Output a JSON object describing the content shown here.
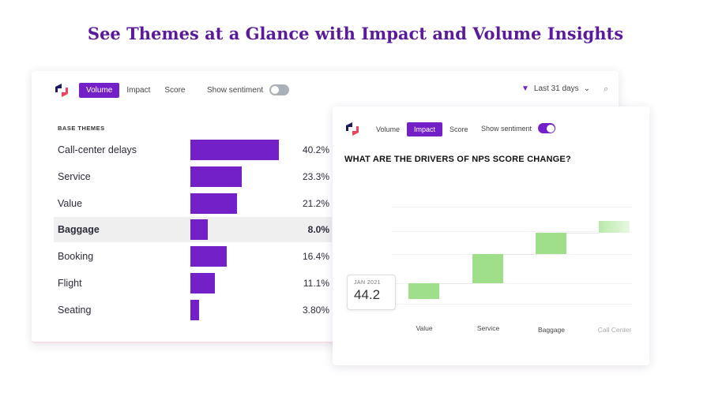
{
  "headline": "See Themes at a Glance with Impact and Volume Insights",
  "back": {
    "tabs": [
      {
        "label": "Volume",
        "active": true
      },
      {
        "label": "Impact",
        "active": false
      },
      {
        "label": "Score",
        "active": false
      }
    ],
    "sentiment_label": "Show sentiment",
    "sentiment_on": false,
    "filter_label": "Last 31 days",
    "section_title": "BASE THEMES",
    "themes": [
      {
        "label": "Call-center delays",
        "value": 40.2,
        "pct": "40.2%"
      },
      {
        "label": "Service",
        "value": 23.3,
        "pct": "23.3%"
      },
      {
        "label": "Value",
        "value": 21.2,
        "pct": "21.2%"
      },
      {
        "label": "Baggage",
        "value": 8.0,
        "pct": "8.0%",
        "highlighted": true
      },
      {
        "label": "Booking",
        "value": 16.4,
        "pct": "16.4%"
      },
      {
        "label": "Flight",
        "value": 11.1,
        "pct": "11.1%"
      },
      {
        "label": "Seating",
        "value": 3.8,
        "pct": "3.80%"
      }
    ],
    "bar_color": "#7320c9"
  },
  "front": {
    "tabs": [
      {
        "label": "Volume",
        "active": false
      },
      {
        "label": "Impact",
        "active": true
      },
      {
        "label": "Score",
        "active": false
      }
    ],
    "sentiment_label": "Show sentiment",
    "sentiment_on": true,
    "question": "WHAT ARE THE DRIVERS OF NPS SCORE CHANGE?",
    "tooltip": {
      "date": "JAN 2021",
      "value": "44.2"
    }
  },
  "chart_data": {
    "type": "waterfall",
    "start_value": 44.2,
    "categories": [
      "Value",
      "Service",
      "Baggage",
      "Call Center"
    ],
    "values": [
      2.0,
      3.7,
      2.7,
      1.5
    ],
    "color": "#9fdf8a"
  }
}
